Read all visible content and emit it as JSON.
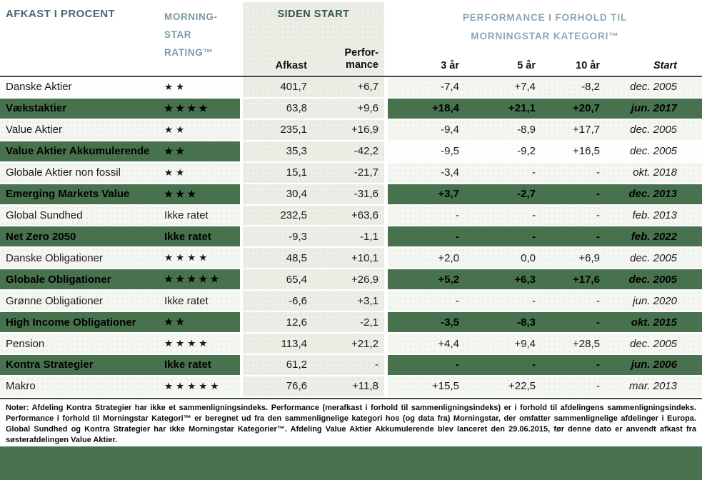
{
  "header": {
    "left_title": "AFKAST I PROCENT",
    "rating_col": [
      "MORNING-",
      "STAR",
      "RATING™"
    ],
    "siden_start_title": "SIDEN START",
    "afkast_label": "Afkast",
    "performance_lines": [
      "Perfor-",
      "mance"
    ],
    "perf_group": [
      "PERFORMANCE I FORHOLD TIL",
      "MORNINGSTAR KATEGORI™"
    ],
    "col_3yr": "3 år",
    "col_5yr": "5 år",
    "col_10yr": "10 år",
    "col_start": "Start"
  },
  "chart_data": {
    "type": "table",
    "title": "AFKAST I PROCENT",
    "column_groups": [
      "SIDEN START",
      "PERFORMANCE I FORHOLD TIL MORNINGSTAR KATEGORI™"
    ],
    "columns": [
      "AFKAST I PROCENT",
      "MORNINGSTAR RATING™",
      "Afkast",
      "Performance",
      "3 år",
      "5 år",
      "10 år",
      "Start"
    ],
    "rows": [
      {
        "name": "Danske Aktier",
        "rating": "★★",
        "afkast": "401,7",
        "performance": "+6,7",
        "yr3": "-7,4",
        "yr5": "+7,4",
        "yr10": "-8,2",
        "start": "dec. 2005",
        "variant": "name-white"
      },
      {
        "name": "Vækstaktier",
        "rating": "★★★★",
        "afkast": "63,8",
        "performance": "+9,6",
        "yr3": "+18,4",
        "yr5": "+21,1",
        "yr10": "+20,7",
        "start": "jun. 2017",
        "variant": "green"
      },
      {
        "name": "Value Aktier",
        "rating": "★★",
        "afkast": "235,1",
        "performance": "+16,9",
        "yr3": "-9,4",
        "yr5": "-8,9",
        "yr10": "+17,7",
        "start": "dec. 2005",
        "variant": "light"
      },
      {
        "name": "Value Aktier Akkumulerende",
        "rating": "★★",
        "afkast": "35,3",
        "performance": "-42,2",
        "yr3": "-9,5",
        "yr5": "-9,2",
        "yr10": "+16,5",
        "start": "dec. 2005",
        "variant": "green-name"
      },
      {
        "name": "Globale Aktier non fossil",
        "rating": "★★",
        "afkast": "15,1",
        "performance": "-21,7",
        "yr3": "-3,4",
        "yr5": "-",
        "yr10": "-",
        "start": "okt. 2018",
        "variant": "light"
      },
      {
        "name": "Emerging Markets Value",
        "rating": "★★★",
        "afkast": "30,4",
        "performance": "-31,6",
        "yr3": "+3,7",
        "yr5": "-2,7",
        "yr10": "-",
        "start": "dec. 2013",
        "variant": "green"
      },
      {
        "name": "Global Sundhed",
        "rating": "Ikke ratet",
        "afkast": "232,5",
        "performance": "+63,6",
        "yr3": "-",
        "yr5": "-",
        "yr10": "-",
        "start": "feb. 2013",
        "variant": "light"
      },
      {
        "name": "Net Zero 2050",
        "rating": "Ikke ratet",
        "afkast": "-9,3",
        "performance": "-1,1",
        "yr3": "-",
        "yr5": "-",
        "yr10": "-",
        "start": "feb. 2022",
        "variant": "green"
      },
      {
        "name": "Danske Obligationer",
        "rating": "★★★★",
        "afkast": "48,5",
        "performance": "+10,1",
        "yr3": "+2,0",
        "yr5": "0,0",
        "yr10": "+6,9",
        "start": "dec. 2005",
        "variant": "light"
      },
      {
        "name": "Globale Obligationer",
        "rating": "★★★★★",
        "afkast": "65,4",
        "performance": "+26,9",
        "yr3": "+5,2",
        "yr5": "+6,3",
        "yr10": "+17,6",
        "start": "dec. 2005",
        "variant": "green"
      },
      {
        "name": "Grønne Obligationer",
        "rating": "Ikke ratet",
        "afkast": "-6,6",
        "performance": "+3,1",
        "yr3": "-",
        "yr5": "-",
        "yr10": "-",
        "start": "jun. 2020",
        "variant": "light"
      },
      {
        "name": "High Income Obligationer",
        "rating": "★★",
        "afkast": "12,6",
        "performance": "-2,1",
        "yr3": "-3,5",
        "yr5": "-8,3",
        "yr10": "-",
        "start": "okt. 2015",
        "variant": "green"
      },
      {
        "name": "Pension",
        "rating": "★★★★",
        "afkast": "113,4",
        "performance": "+21,2",
        "yr3": "+4,4",
        "yr5": "+9,4",
        "yr10": "+28,5",
        "start": "dec. 2005",
        "variant": "light"
      },
      {
        "name": "Kontra Strategier",
        "rating": "Ikke ratet",
        "afkast": "61,2",
        "performance": "-",
        "yr3": "-",
        "yr5": "-",
        "yr10": "-",
        "start": "jun. 2006",
        "variant": "green"
      },
      {
        "name": "Makro",
        "rating": "★★★★★",
        "afkast": "76,6",
        "performance": "+11,8",
        "yr3": "+15,5",
        "yr5": "+22,5",
        "yr10": "-",
        "start": "mar. 2013",
        "variant": "light"
      }
    ]
  },
  "notes": "Noter: Afdeling Kontra Strategier har ikke et sammenligningsindeks. Performance (merafkast i forhold til sammenligningsindeks) er i forhold til afdelingens sammenligningsindeks. Performance i forhold til Morningstar Kategori™ er beregnet ud fra den sammenlignelige kategori hos (og data fra) Morningstar, der omfatter sammenlignelige afdelinger i Europa. Global Sundhed og Kontra Strategier har ikke Morningstar Kategorier™. Afdeling Value Aktier Akkumulerende blev lanceret den 29.06.2015, før denne dato er anvendt afkast fra søsterafdelingen Value Aktier.",
  "colors": {
    "row_green": "#48714e",
    "band_background": "#eceee6",
    "light_row": "#f4f6f1",
    "header_teal": "#2f5950",
    "header_blue": "#8ba7b7",
    "footer_bar": "#48714e"
  }
}
